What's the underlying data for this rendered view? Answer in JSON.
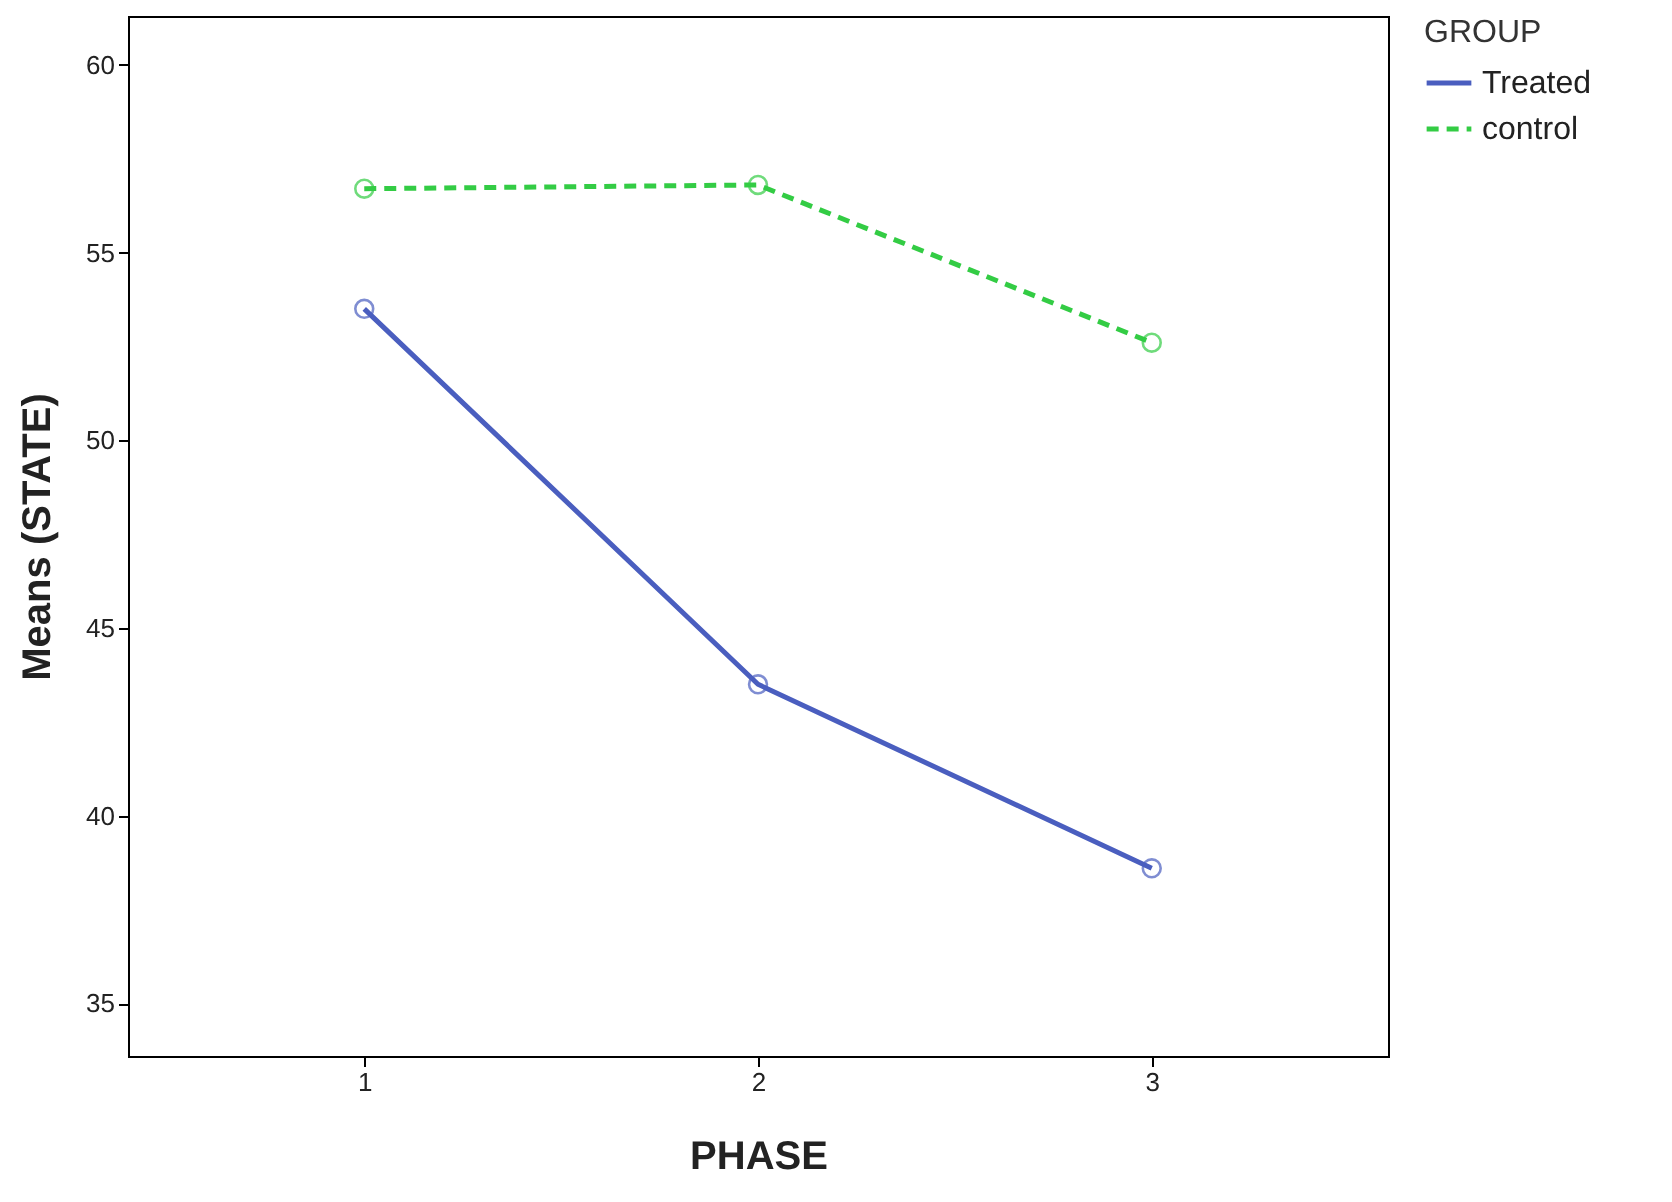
{
  "chart_data": {
    "type": "line",
    "xlabel": "PHASE",
    "ylabel": "Means (STATE)",
    "legend_title": "GROUP",
    "categories": [
      "1",
      "2",
      "3"
    ],
    "series": [
      {
        "name": "Treated",
        "color": "#4a5ebf",
        "values": [
          53.5,
          43.5,
          38.6
        ],
        "line_style": "solid"
      },
      {
        "name": "control",
        "color": "#33cc44",
        "values": [
          56.7,
          56.8,
          52.6
        ],
        "line_style": "dashed"
      }
    ],
    "ylim": [
      33.6,
      61.3
    ],
    "yticks": [
      35,
      40,
      45,
      50,
      55,
      60
    ],
    "grid": false,
    "legend": "top right",
    "marker": "circle"
  }
}
